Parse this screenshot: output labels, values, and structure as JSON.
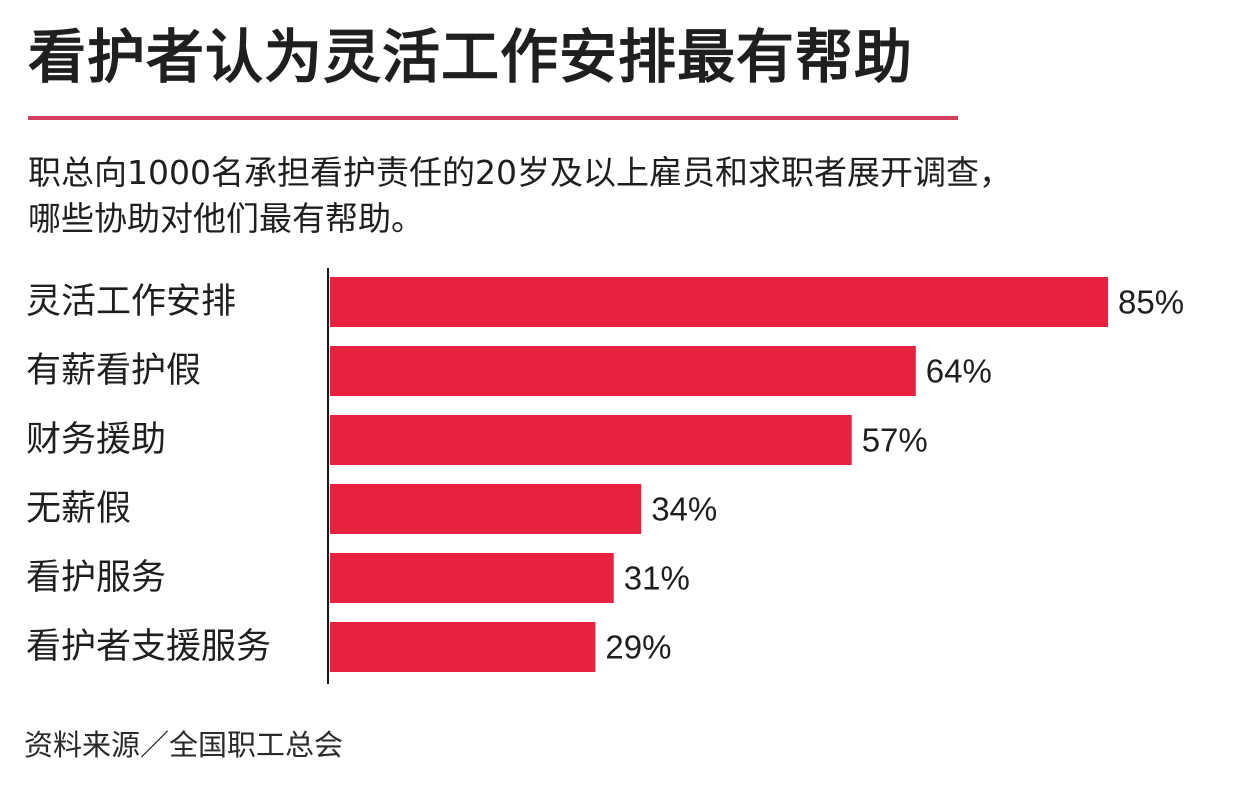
{
  "header": {
    "title": "看护者认为灵活工作安排最有帮助",
    "subtitle_line1": "职总向1000名承担看护责任的20岁及以上雇员和求职者展开调查，",
    "subtitle_line2": "哪些协助对他们最有帮助。"
  },
  "footer": {
    "source": "资料来源／全国职工总会"
  },
  "colors": {
    "bar": "#e8213f",
    "title_rule": "#d3405c",
    "axis": "#1a1a1a"
  },
  "chart_data": {
    "type": "bar",
    "orientation": "horizontal",
    "categories": [
      "灵活工作安排",
      "有薪看护假",
      "财务援助",
      "无薪假",
      "看护服务",
      "看护者支援服务"
    ],
    "values": [
      85,
      64,
      57,
      34,
      31,
      29
    ],
    "value_labels": [
      "85%",
      "64%",
      "57%",
      "34%",
      "31%",
      "29%"
    ],
    "unit": "%",
    "xlim": [
      0,
      85
    ],
    "grid": false,
    "legend": "none"
  }
}
